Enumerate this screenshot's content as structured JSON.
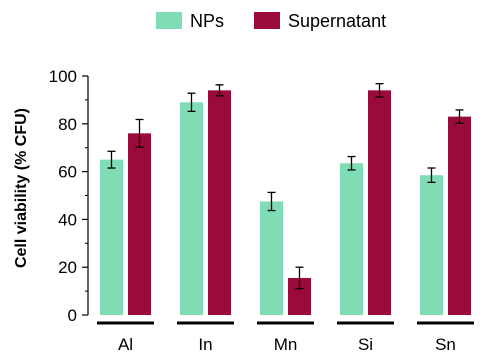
{
  "chart_data": {
    "type": "bar",
    "categories": [
      "Al",
      "In",
      "Mn",
      "Si",
      "Sn"
    ],
    "series": [
      {
        "name": "NPs",
        "color": "#7fdcb5",
        "values": [
          65,
          89,
          47.5,
          63.5,
          58.5
        ],
        "errors": [
          3.5,
          3.8,
          3.8,
          2.8,
          3.0
        ]
      },
      {
        "name": "Supernatant",
        "color": "#9b0a3c",
        "values": [
          76,
          94,
          15.5,
          94,
          83
        ],
        "errors": [
          5.8,
          2.3,
          4.5,
          2.8,
          2.8
        ]
      }
    ],
    "title": "",
    "xlabel": "",
    "ylabel": "Cell viability (% CFU)",
    "ylim": [
      0,
      100
    ],
    "yticks": [
      0,
      20,
      40,
      60,
      80,
      100
    ],
    "grid": false,
    "legend_position": "top-center",
    "category_underline": true
  }
}
